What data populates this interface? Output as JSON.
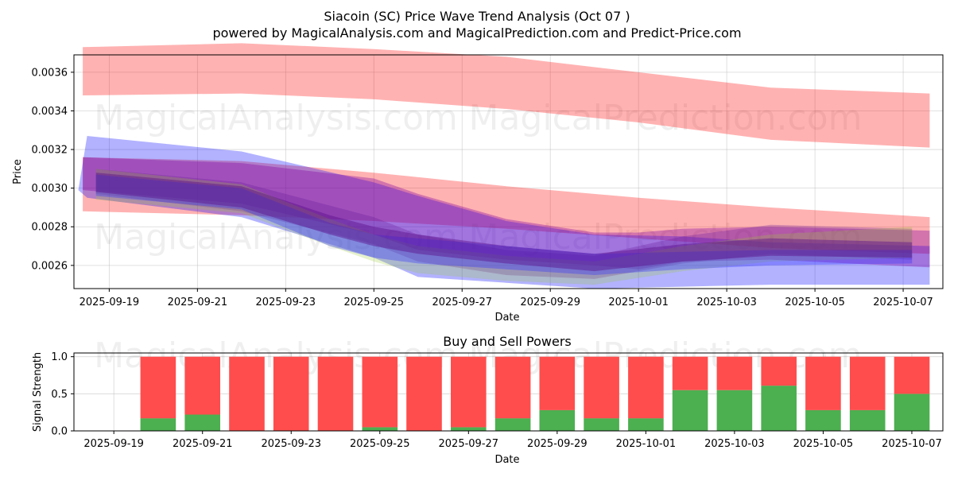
{
  "title": "Siacoin (SC) Price Wave Trend Analysis (Oct 07 )",
  "subtitle": "powered by MagicalAnalysis.com and MagicalPrediction.com and Predict-Price.com",
  "watermarks": [
    "MagicalAnalysis.com",
    "MagicalPrediction.com"
  ],
  "colors": {
    "bullish": "#ff0000",
    "bearish": "#0000ff",
    "buy": "#4caf50",
    "sell": "#ff4d4d",
    "grid": "#b0b0b0"
  },
  "chart_data": [
    {
      "type": "area",
      "name": "price-wave-trend",
      "xlabel": "Date",
      "ylabel": "Price",
      "ylim": [
        0.00248,
        0.00369
      ],
      "xlim_days": [
        -0.8,
        18.9
      ],
      "x_origin": "2025-09-19",
      "grid": true,
      "x_ticks": [
        "2025-09-19",
        "2025-09-21",
        "2025-09-23",
        "2025-09-25",
        "2025-09-27",
        "2025-09-29",
        "2025-10-01",
        "2025-10-03",
        "2025-10-05",
        "2025-10-07"
      ],
      "y_ticks": [
        "0.0026",
        "0.0028",
        "0.0030",
        "0.0032",
        "0.0034",
        "0.0036"
      ],
      "bands": [
        {
          "name": "red-upper-band",
          "color": "#ff0000",
          "opacity": 0.3,
          "x": [
            -0.6,
            3.0,
            6.0,
            9.0,
            12.0,
            15.0,
            18.6
          ],
          "upper": [
            0.00373,
            0.00375,
            0.00372,
            0.00368,
            0.0036,
            0.00352,
            0.00349
          ],
          "lower": [
            0.00348,
            0.00349,
            0.00346,
            0.00341,
            0.00334,
            0.00325,
            0.00321
          ]
        },
        {
          "name": "red-lower-band",
          "color": "#ff0000",
          "opacity": 0.3,
          "x": [
            -0.6,
            3.0,
            6.0,
            9.0,
            12.0,
            15.0,
            18.6
          ],
          "upper": [
            0.00316,
            0.00314,
            0.00308,
            0.00301,
            0.00295,
            0.0029,
            0.00285
          ],
          "lower": [
            0.00288,
            0.00286,
            0.00283,
            0.00279,
            0.00274,
            0.00269,
            0.00266
          ]
        },
        {
          "name": "blue-wide-band",
          "color": "#0000ff",
          "opacity": 0.3,
          "x": [
            -0.7,
            -0.5,
            3.0,
            6.0,
            7.0,
            9.0,
            11.0,
            13.0,
            15.0,
            18.6
          ],
          "upper": [
            0.00299,
            0.00327,
            0.00319,
            0.00303,
            0.00296,
            0.00283,
            0.00276,
            0.00275,
            0.00272,
            0.0027
          ],
          "lower": [
            0.00299,
            0.00295,
            0.00285,
            0.00264,
            0.00254,
            0.00251,
            0.00248,
            0.00249,
            0.0025,
            0.0025
          ]
        },
        {
          "name": "purple-band-1",
          "color": "#8000a0",
          "opacity": 0.35,
          "x": [
            -0.6,
            3.0,
            6.0,
            7.0,
            9.0,
            11.0,
            12.0,
            13.0,
            15.0,
            18.6
          ],
          "upper": [
            0.00316,
            0.00313,
            0.00305,
            0.00297,
            0.00284,
            0.00277,
            0.00277,
            0.00279,
            0.0028,
            0.00278
          ],
          "lower": [
            0.00299,
            0.00292,
            0.00276,
            0.00268,
            0.00263,
            0.0026,
            0.00258,
            0.00262,
            0.00263,
            0.00259
          ]
        },
        {
          "name": "purple-band-2",
          "color": "#6a1b9a",
          "opacity": 0.3,
          "x": [
            -0.3,
            3.0,
            6.0,
            7.0,
            9.0,
            11.0,
            13.0,
            15.0,
            18.2
          ],
          "upper": [
            0.0031,
            0.00303,
            0.00285,
            0.00276,
            0.00268,
            0.00265,
            0.00275,
            0.00281,
            0.00279
          ],
          "lower": [
            0.00297,
            0.00288,
            0.00271,
            0.00262,
            0.00255,
            0.00253,
            0.00261,
            0.00266,
            0.00263
          ]
        },
        {
          "name": "green-band",
          "color": "#9acd32",
          "opacity": 0.25,
          "x": [
            -0.3,
            3.0,
            5.0,
            6.0,
            7.0,
            9.0,
            11.0,
            13.0,
            15.0,
            18.2
          ],
          "upper": [
            0.0031,
            0.00302,
            0.00284,
            0.00276,
            0.0027,
            0.00265,
            0.00262,
            0.0027,
            0.00276,
            0.0028
          ],
          "lower": [
            0.00294,
            0.00287,
            0.0027,
            0.00262,
            0.00256,
            0.00252,
            0.0025,
            0.00257,
            0.00262,
            0.00264
          ]
        },
        {
          "name": "blue-core-band",
          "color": "#3030ff",
          "opacity": 0.35,
          "x": [
            -0.3,
            3.0,
            5.0,
            6.0,
            7.0,
            9.0,
            11.0,
            13.0,
            15.0,
            18.2
          ],
          "upper": [
            0.00307,
            0.003,
            0.00282,
            0.00276,
            0.00274,
            0.0027,
            0.00266,
            0.00267,
            0.00268,
            0.00268
          ],
          "lower": [
            0.00296,
            0.00289,
            0.0027,
            0.00264,
            0.00261,
            0.00258,
            0.00255,
            0.00258,
            0.0026,
            0.00261
          ]
        },
        {
          "name": "purple-core-band",
          "color": "#5a0f8a",
          "opacity": 0.45,
          "x": [
            -0.3,
            3.0,
            5.0,
            6.0,
            7.0,
            9.0,
            11.0,
            13.0,
            15.0,
            18.2
          ],
          "upper": [
            0.00308,
            0.00301,
            0.00286,
            0.0028,
            0.00276,
            0.0027,
            0.00266,
            0.00271,
            0.00274,
            0.00272
          ],
          "lower": [
            0.00298,
            0.0029,
            0.00276,
            0.0027,
            0.00266,
            0.00261,
            0.00257,
            0.00262,
            0.00265,
            0.00264
          ]
        }
      ]
    },
    {
      "type": "bar",
      "name": "buy-and-sell-powers",
      "title": "Buy and Sell Powers",
      "xlabel": "Date",
      "ylabel": "Signal Strength",
      "ylim": [
        0,
        1.05
      ],
      "xlim_days": [
        -0.9,
        18.7
      ],
      "x_origin": "2025-09-19",
      "grid": true,
      "x_ticks": [
        "2025-09-19",
        "2025-09-21",
        "2025-09-23",
        "2025-09-25",
        "2025-09-27",
        "2025-09-29",
        "2025-10-01",
        "2025-10-03",
        "2025-10-05",
        "2025-10-07"
      ],
      "y_ticks": [
        "0.0",
        "0.5",
        "1.0"
      ],
      "days": [
        1,
        2,
        3,
        4,
        5,
        6,
        7,
        8,
        9,
        10,
        11,
        12,
        13,
        14,
        15,
        16,
        17,
        18
      ],
      "series": [
        {
          "name": "Buy",
          "color": "#4caf50",
          "values": [
            0.17,
            0.22,
            0.0,
            0.0,
            0.0,
            0.05,
            0.0,
            0.05,
            0.17,
            0.28,
            0.17,
            0.17,
            0.55,
            0.55,
            0.61,
            0.28,
            0.28,
            0.5
          ]
        },
        {
          "name": "Sell",
          "color": "#ff4d4d",
          "values": [
            0.83,
            0.78,
            1.0,
            1.0,
            1.0,
            0.95,
            1.0,
            0.95,
            0.83,
            0.72,
            0.83,
            0.83,
            0.45,
            0.45,
            0.39,
            0.72,
            0.72,
            0.5
          ]
        }
      ]
    }
  ]
}
